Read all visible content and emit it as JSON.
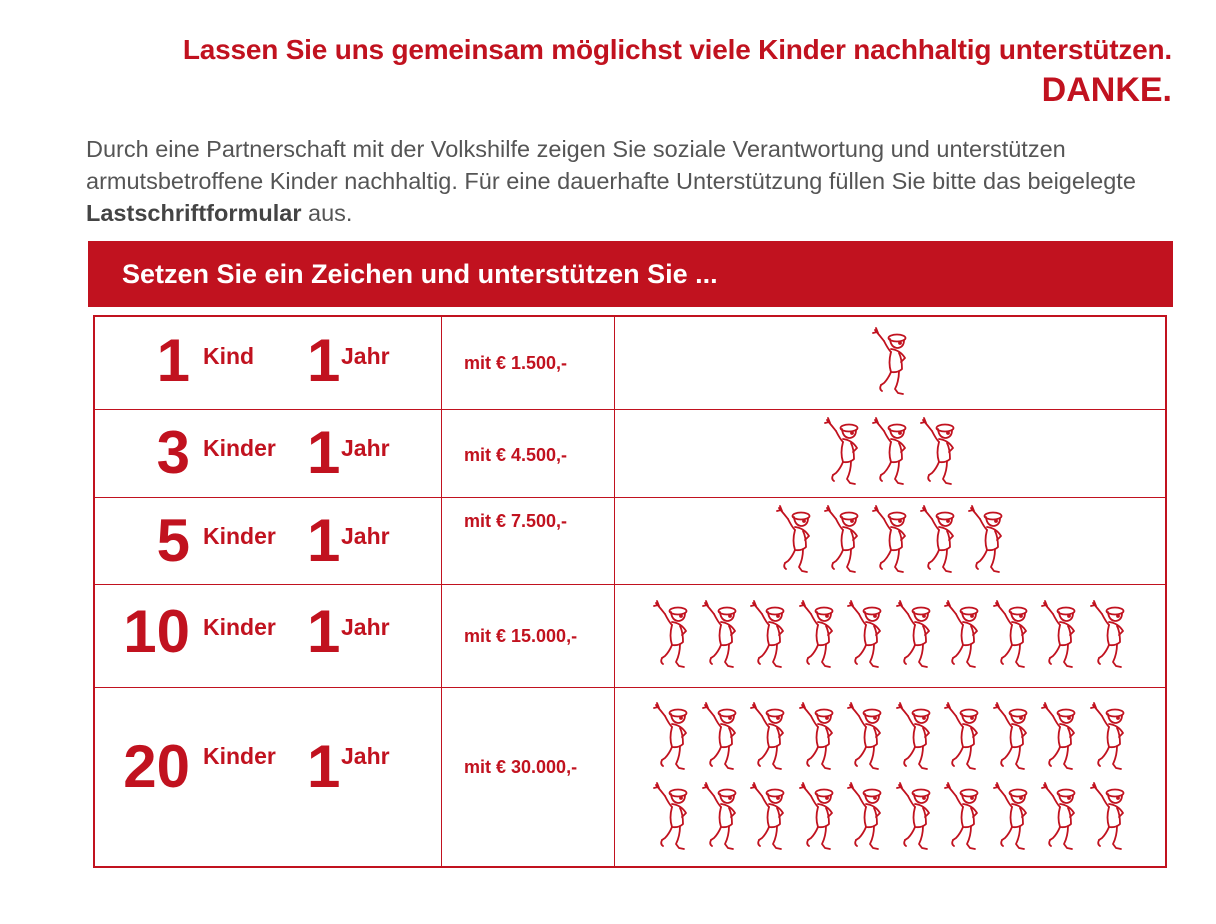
{
  "headline": {
    "line1": "Lassen Sie uns gemeinsam möglichst viele Kinder nachhaltig unterstützen.",
    "line2": "DANKE."
  },
  "intro": {
    "text_before": "Durch eine Partnerschaft mit der Volkshilfe zeigen Sie soziale Verantwortung und unterstützen armutsbetroffene Kinder nachhaltig. Für eine dauerhafte Unterstützung füllen Sie bitte das beigelegte ",
    "text_bold": "Lastschriftformular",
    "text_after": " aus."
  },
  "banner": {
    "title": "Setzen Sie ein Zeichen und unterstützen Sie ..."
  },
  "table": {
    "rows": [
      {
        "count": "1",
        "unit": "Kind",
        "years": "1",
        "period": "Jahr",
        "price": "mit € 1.500,-",
        "children": 1
      },
      {
        "count": "3",
        "unit": "Kinder",
        "years": "1",
        "period": "Jahr",
        "price": "mit € 4.500,-",
        "children": 3
      },
      {
        "count": "5",
        "unit": "Kinder",
        "years": "1",
        "period": "Jahr",
        "price": "mit € 7.500,-",
        "children": 5
      },
      {
        "count": "10",
        "unit": "Kinder",
        "years": "1",
        "period": "Jahr",
        "price": "mit € 15.000,-",
        "children": 10
      },
      {
        "count": "20",
        "unit": "Kinder",
        "years": "1",
        "period": "Jahr",
        "price": "mit € 30.000,-",
        "children": 20
      }
    ]
  },
  "colors": {
    "accent": "#c1121f",
    "text": "#555555",
    "background": "#ffffff"
  },
  "icons": {
    "child": "dancing-child-icon"
  }
}
